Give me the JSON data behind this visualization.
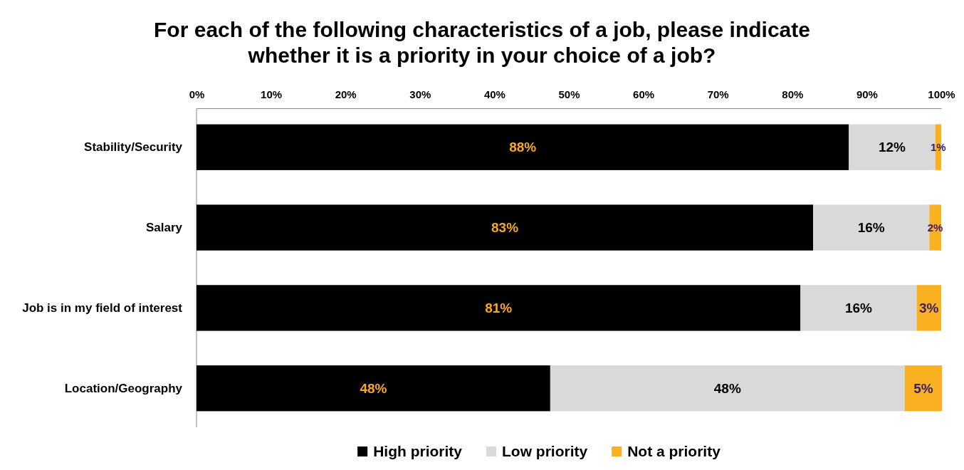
{
  "chart_data": {
    "type": "bar",
    "orientation": "horizontal",
    "stacked": true,
    "title": "For each of the following characteristics of a job, please indicate whether it is a priority in your choice of a job?",
    "categories": [
      "Stability/Security",
      "Salary",
      "Job is in my field of interest",
      "Location/Geography"
    ],
    "xlim": [
      0,
      100
    ],
    "xticks": [
      {
        "value": 0,
        "label": "0%"
      },
      {
        "value": 10,
        "label": "10%"
      },
      {
        "value": 20,
        "label": "20%"
      },
      {
        "value": 30,
        "label": "30%"
      },
      {
        "value": 40,
        "label": "40%"
      },
      {
        "value": 50,
        "label": "50%"
      },
      {
        "value": 60,
        "label": "60%"
      },
      {
        "value": 70,
        "label": "70%"
      },
      {
        "value": 80,
        "label": "80%"
      },
      {
        "value": 90,
        "label": "90%"
      },
      {
        "value": 100,
        "label": "100%"
      }
    ],
    "series": [
      {
        "name": "High priority",
        "color": "#000000",
        "values": [
          87.6,
          82.8,
          81.1,
          47.5
        ],
        "value_labels": [
          "88%",
          "83%",
          "81%",
          "48%"
        ]
      },
      {
        "name": "Low priority",
        "color": "#d9d9d9",
        "values": [
          11.6,
          15.6,
          15.6,
          47.6
        ],
        "value_labels": [
          "12%",
          "16%",
          "16%",
          "48%"
        ]
      },
      {
        "name": "Not a priority",
        "color": "#f9b122",
        "values": [
          0.8,
          1.6,
          3.3,
          5.0
        ],
        "value_labels": [
          "1%",
          "2%",
          "3%",
          "5%"
        ]
      }
    ],
    "grid": false,
    "legend": "bottom"
  }
}
